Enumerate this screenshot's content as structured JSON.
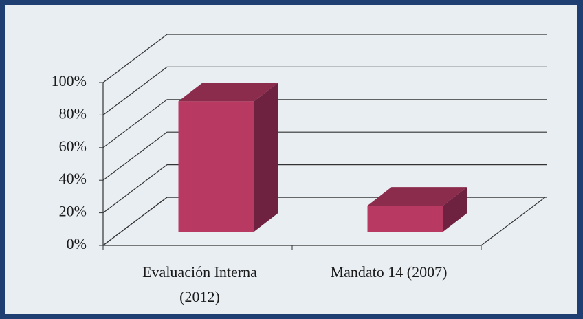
{
  "chart_data": {
    "type": "bar3d",
    "categories": [
      [
        "Evaluación Interna",
        "(2012)"
      ],
      [
        "Mandato 14 (2007)"
      ]
    ],
    "values": [
      80,
      16
    ],
    "ylim": [
      0,
      100
    ],
    "yticks": [
      {
        "value": 0,
        "label": "0%"
      },
      {
        "value": 20,
        "label": "20%"
      },
      {
        "value": 40,
        "label": "40%"
      },
      {
        "value": 60,
        "label": "60%"
      },
      {
        "value": 80,
        "label": "80%"
      },
      {
        "value": 100,
        "label": "100%"
      }
    ],
    "grid": true,
    "color": "#b83a63"
  }
}
